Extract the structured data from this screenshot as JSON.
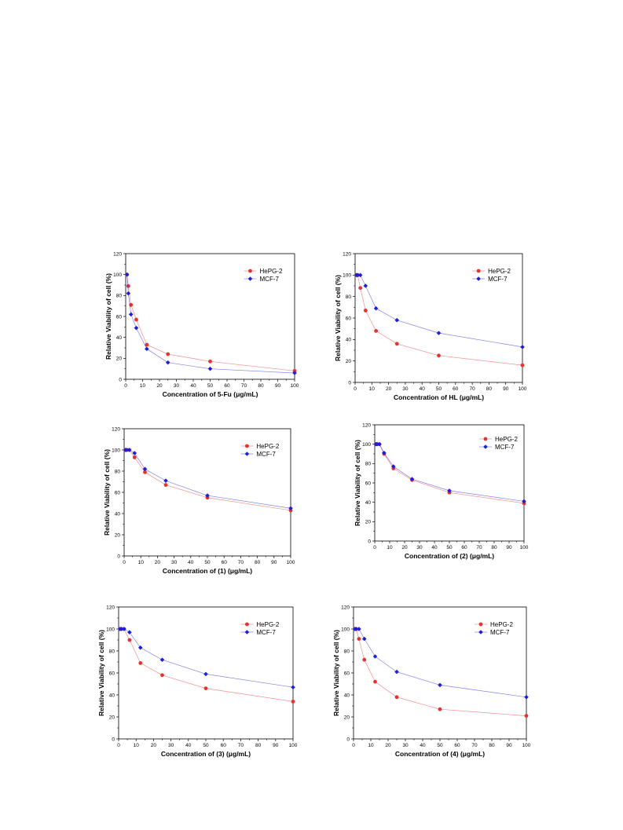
{
  "chart_data": [
    {
      "type": "line",
      "xlabel": "Concentration of 5-Fu (μg/mL)",
      "ylabel": "Relative Viability of cell (%)",
      "xlim": [
        0,
        100
      ],
      "ylim": [
        0,
        120
      ],
      "xticks": [
        "0",
        "10",
        "20",
        "30",
        "40",
        "50",
        "60",
        "70",
        "80",
        "90",
        "100"
      ],
      "yticks": [
        "0",
        "20",
        "40",
        "60",
        "80",
        "100",
        "120"
      ],
      "legend_position": "top-right",
      "series": [
        {
          "name": "HePG-2",
          "color": "#e8322d",
          "marker": "circle",
          "x": [
            0.78,
            1.56,
            3.125,
            6.25,
            12.5,
            25,
            50,
            100
          ],
          "y": [
            100,
            89,
            71,
            57,
            33,
            24,
            17,
            8
          ]
        },
        {
          "name": "MCF-7",
          "color": "#1f1fd6",
          "marker": "diamond",
          "x": [
            0.78,
            1.56,
            3.125,
            6.25,
            12.5,
            25,
            50,
            100
          ],
          "y": [
            100,
            82,
            62,
            49,
            29,
            16,
            10,
            6
          ]
        }
      ]
    },
    {
      "type": "line",
      "xlabel": "Concentration of HL (μg/mL)",
      "ylabel": "Relative Viability of cell (%)",
      "xlim": [
        0,
        100
      ],
      "ylim": [
        0,
        120
      ],
      "xticks": [
        "0",
        "10",
        "20",
        "30",
        "40",
        "50",
        "60",
        "70",
        "80",
        "90",
        "100"
      ],
      "yticks": [
        "0",
        "20",
        "40",
        "60",
        "80",
        "100",
        "120"
      ],
      "legend_position": "top-right",
      "series": [
        {
          "name": "HePG-2",
          "color": "#e8322d",
          "marker": "circle",
          "x": [
            0.78,
            1.56,
            3.125,
            6.25,
            12.5,
            25,
            50,
            100
          ],
          "y": [
            100,
            100,
            88,
            67,
            48,
            36,
            25,
            16
          ]
        },
        {
          "name": "MCF-7",
          "color": "#1f1fd6",
          "marker": "diamond",
          "x": [
            0.78,
            1.56,
            3.125,
            6.25,
            12.5,
            25,
            50,
            100
          ],
          "y": [
            100,
            100,
            100,
            90,
            69,
            58,
            46,
            33
          ]
        }
      ]
    },
    {
      "type": "line",
      "xlabel": "Concentration of (1) (μg/mL)",
      "ylabel": "Relative Viability of cell (%)",
      "xlim": [
        0,
        100
      ],
      "ylim": [
        0,
        120
      ],
      "xticks": [
        "0",
        "10",
        "20",
        "30",
        "40",
        "50",
        "60",
        "70",
        "80",
        "90",
        "100"
      ],
      "yticks": [
        "0",
        "20",
        "40",
        "60",
        "80",
        "100",
        "120"
      ],
      "legend_position": "top-right",
      "series": [
        {
          "name": "HePG-2",
          "color": "#e8322d",
          "marker": "circle",
          "x": [
            0.78,
            1.56,
            3.125,
            6.25,
            12.5,
            25,
            50,
            100
          ],
          "y": [
            100,
            100,
            100,
            93,
            79,
            67,
            55,
            43
          ]
        },
        {
          "name": "MCF-7",
          "color": "#1f1fd6",
          "marker": "diamond",
          "x": [
            0.78,
            1.56,
            3.125,
            6.25,
            12.5,
            25,
            50,
            100
          ],
          "y": [
            100,
            100,
            100,
            97,
            82,
            71,
            57,
            45
          ]
        }
      ]
    },
    {
      "type": "line",
      "xlabel": "Concentration of (2) (μg/mL)",
      "ylabel": "Relative Viability of cell (%)",
      "xlim": [
        0,
        100
      ],
      "ylim": [
        0,
        120
      ],
      "xticks": [
        "0",
        "10",
        "20",
        "30",
        "40",
        "50",
        "60",
        "70",
        "80",
        "90",
        "100"
      ],
      "yticks": [
        "0",
        "20",
        "40",
        "60",
        "80",
        "100",
        "120"
      ],
      "legend_position": "top-right",
      "series": [
        {
          "name": "HePG-2",
          "color": "#e8322d",
          "marker": "circle",
          "x": [
            0.78,
            1.56,
            3.125,
            6.25,
            12.5,
            25,
            50,
            100
          ],
          "y": [
            100,
            100,
            100,
            90,
            75,
            63,
            50,
            39
          ]
        },
        {
          "name": "MCF-7",
          "color": "#1f1fd6",
          "marker": "diamond",
          "x": [
            0.78,
            1.56,
            3.125,
            6.25,
            12.5,
            25,
            50,
            100
          ],
          "y": [
            100,
            100,
            100,
            91,
            77,
            64,
            52,
            41
          ]
        }
      ]
    },
    {
      "type": "line",
      "xlabel": "Concentration of (3) (μg/mL)",
      "ylabel": "Relative Viability of cell (%)",
      "xlim": [
        0,
        100
      ],
      "ylim": [
        0,
        120
      ],
      "xticks": [
        "0",
        "10",
        "20",
        "30",
        "40",
        "50",
        "60",
        "70",
        "80",
        "90",
        "100"
      ],
      "yticks": [
        "0",
        "20",
        "40",
        "60",
        "80",
        "100",
        "120"
      ],
      "legend_position": "top-right",
      "series": [
        {
          "name": "HePG-2",
          "color": "#e8322d",
          "marker": "circle",
          "x": [
            0.78,
            1.56,
            3.125,
            6.25,
            12.5,
            25,
            50,
            100
          ],
          "y": [
            100,
            100,
            100,
            90,
            69,
            58,
            46,
            34
          ]
        },
        {
          "name": "MCF-7",
          "color": "#1f1fd6",
          "marker": "diamond",
          "x": [
            0.78,
            1.56,
            3.125,
            6.25,
            12.5,
            25,
            50,
            100
          ],
          "y": [
            100,
            100,
            100,
            97,
            83,
            72,
            59,
            47
          ]
        }
      ]
    },
    {
      "type": "line",
      "xlabel": "Concentration of (4) (μg/mL)",
      "ylabel": "Relative Viability of cell (%)",
      "xlim": [
        0,
        100
      ],
      "ylim": [
        0,
        120
      ],
      "xticks": [
        "0",
        "10",
        "20",
        "30",
        "40",
        "50",
        "60",
        "70",
        "80",
        "90",
        "100"
      ],
      "yticks": [
        "0",
        "20",
        "40",
        "60",
        "80",
        "100",
        "120"
      ],
      "legend_position": "top-right",
      "series": [
        {
          "name": "HePG-2",
          "color": "#e8322d",
          "marker": "circle",
          "x": [
            0.78,
            1.56,
            3.125,
            6.25,
            12.5,
            25,
            50,
            100
          ],
          "y": [
            100,
            100,
            91,
            72,
            52,
            38,
            27,
            21
          ]
        },
        {
          "name": "MCF-7",
          "color": "#1f1fd6",
          "marker": "diamond",
          "x": [
            0.78,
            1.56,
            3.125,
            6.25,
            12.5,
            25,
            50,
            100
          ],
          "y": [
            100,
            100,
            100,
            91,
            75,
            61,
            49,
            38
          ]
        }
      ]
    }
  ]
}
